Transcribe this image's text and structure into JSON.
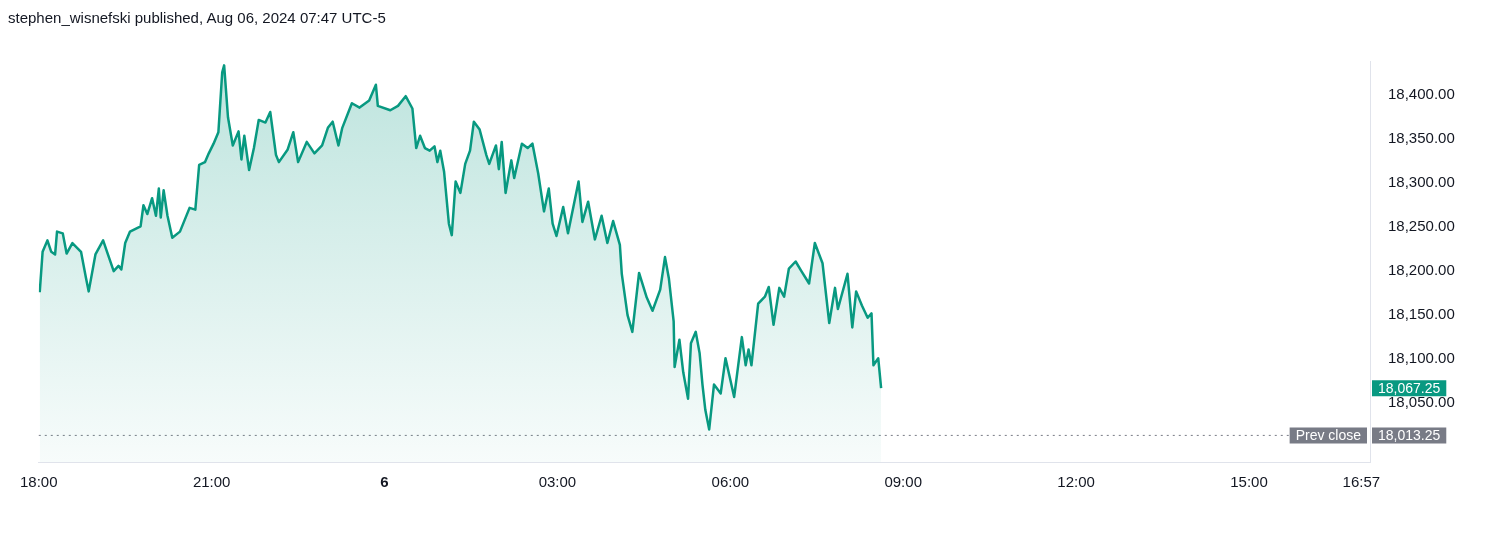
{
  "chart_data": {
    "type": "area",
    "title": "stephen_wisnefski published, Aug 06, 2024 07:47 UTC-5",
    "x": [
      "2024-08-05T18:01",
      "2024-08-05T18:04",
      "2024-08-05T18:09",
      "2024-08-05T18:13",
      "2024-08-05T18:17",
      "2024-08-05T18:19",
      "2024-08-05T18:25",
      "2024-08-05T18:29",
      "2024-08-05T18:35",
      "2024-08-05T18:44",
      "2024-08-05T18:49",
      "2024-08-05T18:52",
      "2024-08-05T18:59",
      "2024-08-05T19:07",
      "2024-08-05T19:18",
      "2024-08-05T19:23",
      "2024-08-05T19:26",
      "2024-08-05T19:30",
      "2024-08-05T19:35",
      "2024-08-05T19:46",
      "2024-08-05T19:49",
      "2024-08-05T19:53",
      "2024-08-05T19:58",
      "2024-08-05T20:02",
      "2024-08-05T20:05",
      "2024-08-05T20:07",
      "2024-08-05T20:10",
      "2024-08-05T20:14",
      "2024-08-05T20:19",
      "2024-08-05T20:27",
      "2024-08-05T20:37",
      "2024-08-05T20:43",
      "2024-08-05T20:47",
      "2024-08-05T20:53",
      "2024-08-05T20:57",
      "2024-08-05T21:02",
      "2024-08-05T21:07",
      "2024-08-05T21:11",
      "2024-08-05T21:13",
      "2024-08-05T21:17",
      "2024-08-05T21:22",
      "2024-08-05T21:28",
      "2024-08-05T21:31",
      "2024-08-05T21:34",
      "2024-08-05T21:39",
      "2024-08-05T21:44",
      "2024-08-05T21:49",
      "2024-08-05T21:56",
      "2024-08-05T22:01",
      "2024-08-05T22:07",
      "2024-08-05T22:10",
      "2024-08-05T22:19",
      "2024-08-05T22:25",
      "2024-08-05T22:30",
      "2024-08-05T22:39",
      "2024-08-05T22:47",
      "2024-08-05T22:55",
      "2024-08-05T23:01",
      "2024-08-05T23:06",
      "2024-08-05T23:12",
      "2024-08-05T23:16",
      "2024-08-05T23:26",
      "2024-08-05T23:34",
      "2024-08-05T23:44",
      "2024-08-05T23:51",
      "2024-08-05T23:53",
      "2024-08-06T00:06",
      "2024-08-06T00:14",
      "2024-08-06T00:22",
      "2024-08-06T00:29",
      "2024-08-06T00:33",
      "2024-08-06T00:37",
      "2024-08-06T00:42",
      "2024-08-06T00:47",
      "2024-08-06T00:52",
      "2024-08-06T00:55",
      "2024-08-06T00:58",
      "2024-08-06T01:02",
      "2024-08-06T01:07",
      "2024-08-06T01:10",
      "2024-08-06T01:14",
      "2024-08-06T01:19",
      "2024-08-06T01:24",
      "2024-08-06T01:29",
      "2024-08-06T01:33",
      "2024-08-06T01:39",
      "2024-08-06T01:46",
      "2024-08-06T01:49",
      "2024-08-06T01:56",
      "2024-08-06T01:59",
      "2024-08-06T02:02",
      "2024-08-06T02:06",
      "2024-08-06T02:12",
      "2024-08-06T02:15",
      "2024-08-06T02:23",
      "2024-08-06T02:29",
      "2024-08-06T02:34",
      "2024-08-06T02:40",
      "2024-08-06T02:46",
      "2024-08-06T02:51",
      "2024-08-06T02:55",
      "2024-08-06T02:59",
      "2024-08-06T03:06",
      "2024-08-06T03:11",
      "2024-08-06T03:22",
      "2024-08-06T03:26",
      "2024-08-06T03:32",
      "2024-08-06T03:39",
      "2024-08-06T03:46",
      "2024-08-06T03:52",
      "2024-08-06T03:58",
      "2024-08-06T04:05",
      "2024-08-06T04:07",
      "2024-08-06T04:13",
      "2024-08-06T04:18",
      "2024-08-06T04:25",
      "2024-08-06T04:33",
      "2024-08-06T04:39",
      "2024-08-06T04:47",
      "2024-08-06T04:52",
      "2024-08-06T04:56",
      "2024-08-06T05:01",
      "2024-08-06T05:02",
      "2024-08-06T05:07",
      "2024-08-06T05:11",
      "2024-08-06T05:16",
      "2024-08-06T05:19",
      "2024-08-06T05:24",
      "2024-08-06T05:28",
      "2024-08-06T05:31",
      "2024-08-06T05:34",
      "2024-08-06T05:38",
      "2024-08-06T05:43",
      "2024-08-06T05:50",
      "2024-08-06T05:55",
      "2024-08-06T06:04",
      "2024-08-06T06:12",
      "2024-08-06T06:16",
      "2024-08-06T06:19",
      "2024-08-06T06:22",
      "2024-08-06T06:29",
      "2024-08-06T06:36",
      "2024-08-06T06:40",
      "2024-08-06T06:45",
      "2024-08-06T06:51",
      "2024-08-06T06:56",
      "2024-08-06T07:01",
      "2024-08-06T07:08",
      "2024-08-06T07:14",
      "2024-08-06T07:22",
      "2024-08-06T07:28",
      "2024-08-06T07:36",
      "2024-08-06T07:43",
      "2024-08-06T07:49",
      "2024-08-06T07:52",
      "2024-08-06T08:02",
      "2024-08-06T08:07",
      "2024-08-06T08:11",
      "2024-08-06T08:17",
      "2024-08-06T08:23",
      "2024-08-06T08:27",
      "2024-08-06T08:29",
      "2024-08-06T08:34",
      "2024-08-06T08:37"
    ],
    "series": [
      {
        "color": "#089981",
        "values": [
          18176,
          18222,
          18235,
          18222,
          18219,
          18245,
          18243,
          18220,
          18232,
          18222,
          18193,
          18177,
          18219,
          18235,
          18200,
          18206,
          18202,
          18232,
          18245,
          18251,
          18275,
          18265,
          18283,
          18263,
          18294,
          18261,
          18292,
          18263,
          18238,
          18245,
          18272,
          18270,
          18321,
          18324,
          18334,
          18345,
          18358,
          18426,
          18434,
          18375,
          18343,
          18359,
          18327,
          18354,
          18315,
          18340,
          18372,
          18369,
          18381,
          18332,
          18324,
          18338,
          18358,
          18324,
          18347,
          18334,
          18343,
          18363,
          18370,
          18343,
          18363,
          18391,
          18386,
          18394,
          18412,
          18388,
          18383,
          18388,
          18399,
          18385,
          18340,
          18354,
          18340,
          18337,
          18342,
          18324,
          18337,
          18313,
          18254,
          18241,
          18302,
          18289,
          18322,
          18337,
          18370,
          18361,
          18332,
          18322,
          18343,
          18316,
          18347,
          18289,
          18326,
          18306,
          18345,
          18340,
          18345,
          18311,
          18268,
          18294,
          18254,
          18240,
          18273,
          18243,
          18302,
          18256,
          18279,
          18236,
          18263,
          18232,
          18257,
          18230,
          18197,
          18150,
          18131,
          18198,
          18170,
          18155,
          18179,
          18216,
          18192,
          18143,
          18091,
          18122,
          18085,
          18055,
          18118,
          18131,
          18107,
          18071,
          18042,
          18020,
          18071,
          18061,
          18101,
          18057,
          18125,
          18093,
          18111,
          18093,
          18163,
          18171,
          18182,
          18139,
          18181,
          18171,
          18203,
          18211,
          18200,
          18186,
          18232,
          18209,
          18141,
          18181,
          18157,
          18197,
          18136,
          18177,
          18161,
          18147,
          18152,
          18093,
          18101,
          18067
        ]
      }
    ],
    "xlim": [
      "2024-08-05T18:00",
      "2024-08-06T17:06"
    ],
    "xticks": [
      {
        "value": "2024-08-05T18:00",
        "label": "18:00"
      },
      {
        "value": "2024-08-05T21:00",
        "label": "21:00"
      },
      {
        "value": "2024-08-06T00:00",
        "label": "6"
      },
      {
        "value": "2024-08-06T03:00",
        "label": "03:00"
      },
      {
        "value": "2024-08-06T06:00",
        "label": "06:00"
      },
      {
        "value": "2024-08-06T09:00",
        "label": "09:00"
      },
      {
        "value": "2024-08-06T12:00",
        "label": "12:00"
      },
      {
        "value": "2024-08-06T15:00",
        "label": "15:00"
      },
      {
        "value": "2024-08-06T16:57",
        "label": "16:57"
      }
    ],
    "ylim": [
      17983,
      18439
    ],
    "yticks": [
      {
        "value": 18050,
        "label": "18,050.00"
      },
      {
        "value": 18100,
        "label": "18,100.00"
      },
      {
        "value": 18150,
        "label": "18,150.00"
      },
      {
        "value": 18200,
        "label": "18,200.00"
      },
      {
        "value": 18250,
        "label": "18,250.00"
      },
      {
        "value": 18300,
        "label": "18,300.00"
      },
      {
        "value": 18350,
        "label": "18,350.00"
      },
      {
        "value": 18400,
        "label": "18,400.00"
      }
    ],
    "ref_lines": [
      {
        "axis": "y",
        "value": 18013.25,
        "label": "Prev close",
        "color": "#787b86",
        "line_style": "dotted"
      }
    ],
    "annotations": [
      "18,067.25",
      {
        "text": "18,013.25",
        "x": "2024-08-06T17:06",
        "y": 18013.25
      }
    ],
    "grid": false,
    "legend": false
  }
}
